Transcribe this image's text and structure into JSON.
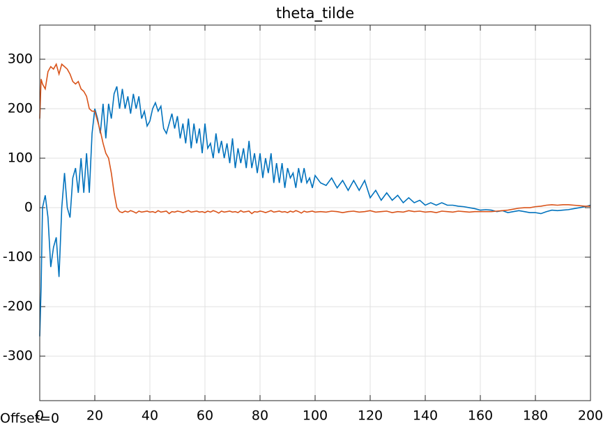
{
  "chart_data": {
    "type": "line",
    "title": "theta_tilde",
    "annotations": [
      "Offset=0"
    ],
    "x": [
      0,
      0.5,
      1,
      2,
      3,
      4,
      5,
      6,
      7,
      8,
      9,
      10,
      11,
      12,
      13,
      14,
      15,
      16,
      17,
      18,
      19,
      20,
      21,
      22,
      23,
      24,
      25,
      26,
      27,
      28,
      29,
      30,
      31,
      32,
      33,
      34,
      35,
      36,
      37,
      38,
      39,
      40,
      41,
      42,
      43,
      44,
      45,
      46,
      47,
      48,
      49,
      50,
      51,
      52,
      53,
      54,
      55,
      56,
      57,
      58,
      59,
      60,
      61,
      62,
      63,
      64,
      65,
      66,
      67,
      68,
      69,
      70,
      71,
      72,
      73,
      74,
      75,
      76,
      77,
      78,
      79,
      80,
      81,
      82,
      83,
      84,
      85,
      86,
      87,
      88,
      89,
      90,
      91,
      92,
      93,
      94,
      95,
      96,
      97,
      98,
      99,
      100,
      102,
      104,
      106,
      108,
      110,
      112,
      114,
      116,
      118,
      120,
      122,
      124,
      126,
      128,
      130,
      132,
      134,
      136,
      138,
      140,
      142,
      144,
      146,
      148,
      150,
      152,
      154,
      156,
      158,
      160,
      162,
      164,
      166,
      168,
      170,
      172,
      174,
      176,
      178,
      180,
      182,
      184,
      186,
      188,
      190,
      192,
      194,
      196,
      198,
      200
    ],
    "series": [
      {
        "color": "#0072bd",
        "values": [
          -260,
          -160,
          0,
          25,
          -20,
          -120,
          -80,
          -60,
          -140,
          0,
          70,
          0,
          -20,
          60,
          80,
          30,
          100,
          30,
          110,
          30,
          150,
          200,
          180,
          150,
          210,
          140,
          210,
          180,
          230,
          245,
          200,
          240,
          200,
          225,
          190,
          230,
          200,
          225,
          180,
          195,
          165,
          175,
          200,
          212,
          195,
          205,
          160,
          150,
          170,
          190,
          160,
          185,
          140,
          170,
          130,
          180,
          120,
          170,
          130,
          160,
          110,
          170,
          120,
          130,
          100,
          150,
          110,
          135,
          100,
          130,
          90,
          140,
          80,
          120,
          90,
          120,
          80,
          135,
          80,
          110,
          70,
          110,
          60,
          100,
          70,
          110,
          50,
          90,
          50,
          90,
          40,
          80,
          60,
          70,
          40,
          80,
          50,
          80,
          50,
          60,
          40,
          65,
          50,
          45,
          60,
          40,
          55,
          35,
          55,
          35,
          55,
          20,
          35,
          15,
          30,
          15,
          25,
          10,
          20,
          10,
          15,
          5,
          10,
          5,
          10,
          5,
          5,
          3,
          2,
          0,
          -2,
          -5,
          -4,
          -5,
          -8,
          -6,
          -10,
          -8,
          -6,
          -8,
          -10,
          -10,
          -12,
          -8,
          -5,
          -6,
          -5,
          -4,
          -2,
          0,
          2,
          5
        ]
      },
      {
        "color": "#d95319",
        "values": [
          180,
          260,
          250,
          240,
          275,
          285,
          280,
          290,
          270,
          290,
          285,
          280,
          270,
          255,
          250,
          255,
          240,
          235,
          225,
          200,
          195,
          195,
          175,
          155,
          130,
          110,
          100,
          70,
          30,
          0,
          -8,
          -10,
          -7,
          -9,
          -6,
          -8,
          -11,
          -7,
          -9,
          -8,
          -7,
          -9,
          -8,
          -10,
          -6,
          -9,
          -8,
          -7,
          -12,
          -8,
          -9,
          -7,
          -8,
          -10,
          -8,
          -6,
          -9,
          -8,
          -7,
          -9,
          -8,
          -10,
          -7,
          -9,
          -6,
          -8,
          -11,
          -7,
          -9,
          -8,
          -7,
          -9,
          -8,
          -10,
          -6,
          -9,
          -8,
          -7,
          -12,
          -8,
          -9,
          -7,
          -8,
          -10,
          -8,
          -6,
          -9,
          -8,
          -7,
          -9,
          -8,
          -10,
          -7,
          -9,
          -6,
          -8,
          -11,
          -7,
          -9,
          -8,
          -7,
          -9,
          -8,
          -9,
          -7,
          -8,
          -10,
          -8,
          -7,
          -9,
          -8,
          -6,
          -9,
          -8,
          -7,
          -10,
          -8,
          -9,
          -6,
          -8,
          -7,
          -9,
          -8,
          -10,
          -7,
          -8,
          -9,
          -7,
          -8,
          -9,
          -8,
          -8,
          -8,
          -8,
          -7,
          -6,
          -5,
          -3,
          -1,
          0,
          0,
          2,
          3,
          5,
          6,
          5,
          6,
          6,
          5,
          4,
          3,
          3
        ]
      }
    ],
    "xlim": [
      0,
      200
    ],
    "xticks": [
      0,
      20,
      40,
      60,
      80,
      100,
      120,
      140,
      160,
      180,
      200
    ],
    "ylim": [
      -390,
      369
    ],
    "yticks": [
      -300,
      -200,
      -100,
      0,
      100,
      200,
      300
    ],
    "grid": true
  }
}
